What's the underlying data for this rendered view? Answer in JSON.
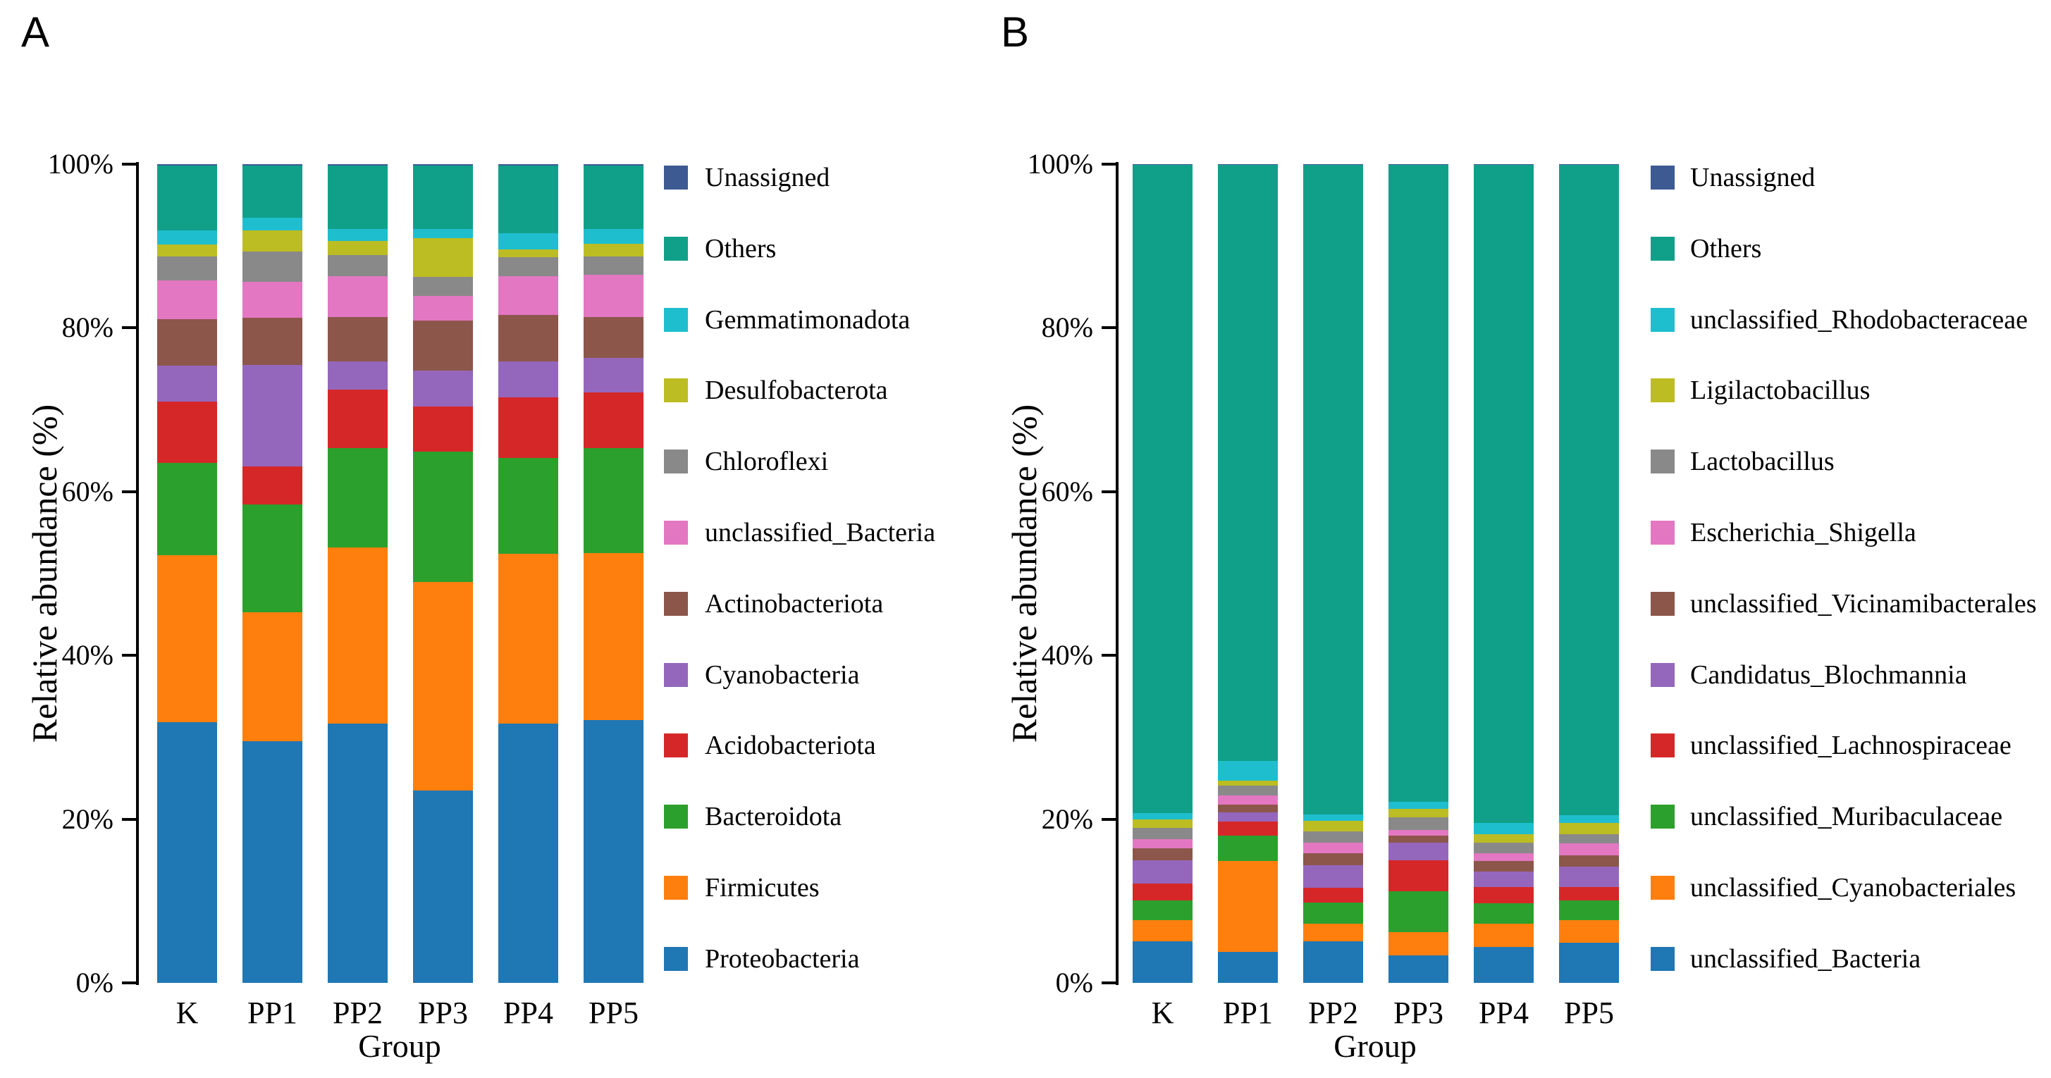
{
  "figure": {
    "background": "#ffffff"
  },
  "chart_data": [
    {
      "type": "bar",
      "stacked": true,
      "panel_letter": "A",
      "xlabel": "Group",
      "ylabel": "Relative abundance (%)",
      "ylim": [
        0,
        100
      ],
      "yticks": [
        "0%",
        "20%",
        "40%",
        "60%",
        "80%",
        "100%"
      ],
      "grid": false,
      "legend_position": "right",
      "categories": [
        "K",
        "PP1",
        "PP2",
        "PP3",
        "PP4",
        "PP5"
      ],
      "legend_top_to_bottom": [
        "Unassigned",
        "Others",
        "Gemmatimonadota",
        "Desulfobacterota",
        "Chloroflexi",
        "unclassified_Bacteria",
        "Actinobacteriota",
        "Cyanobacteria",
        "Acidobacteriota",
        "Bacteroidota",
        "Firmicutes",
        "Proteobacteria"
      ],
      "series": [
        {
          "name": "Proteobacteria",
          "color": "#1f77b4",
          "values": [
            31.8,
            29.5,
            31.7,
            23.5,
            31.7,
            32.1
          ]
        },
        {
          "name": "Firmicutes",
          "color": "#ff7f0e",
          "values": [
            20.4,
            15.8,
            21.5,
            25.5,
            20.7,
            20.4
          ]
        },
        {
          "name": "Bacteroidota",
          "color": "#2ca02c",
          "values": [
            11.3,
            13.1,
            12.1,
            15.9,
            11.7,
            12.8
          ]
        },
        {
          "name": "Acidobacteriota",
          "color": "#d62728",
          "values": [
            7.5,
            4.7,
            7.2,
            5.5,
            7.4,
            6.8
          ]
        },
        {
          "name": "Cyanobacteria",
          "color": "#9467bd",
          "values": [
            4.4,
            12.4,
            3.4,
            4.4,
            4.4,
            4.2
          ]
        },
        {
          "name": "Actinobacteriota",
          "color": "#8c564b",
          "values": [
            5.7,
            5.7,
            5.4,
            6.1,
            5.7,
            5.0
          ]
        },
        {
          "name": "unclassified_Bacteria",
          "color": "#e377c2",
          "values": [
            4.7,
            4.4,
            5.0,
            3.0,
            4.7,
            5.2
          ]
        },
        {
          "name": "Chloroflexi",
          "color": "#898989",
          "values": [
            2.9,
            3.7,
            2.6,
            2.3,
            2.3,
            2.2
          ]
        },
        {
          "name": "Desulfobacterota",
          "color": "#bcbd22",
          "values": [
            1.5,
            2.6,
            1.7,
            4.8,
            1.0,
            1.6
          ]
        },
        {
          "name": "Gemmatimonadota",
          "color": "#1ebecf",
          "values": [
            1.7,
            1.6,
            1.5,
            1.1,
            2.0,
            1.8
          ]
        },
        {
          "name": "Others",
          "color": "#10a089",
          "values": [
            7.95,
            6.35,
            7.75,
            7.75,
            8.25,
            7.75
          ]
        },
        {
          "name": "Unassigned",
          "color": "#3d5a93",
          "values": [
            0.15,
            0.15,
            0.15,
            0.15,
            0.15,
            0.15
          ]
        }
      ]
    },
    {
      "type": "bar",
      "stacked": true,
      "panel_letter": "B",
      "xlabel": "Group",
      "ylabel": "Relative abundance (%)",
      "ylim": [
        0,
        100
      ],
      "yticks": [
        "0%",
        "20%",
        "40%",
        "60%",
        "80%",
        "100%"
      ],
      "grid": false,
      "legend_position": "right",
      "categories": [
        "K",
        "PP1",
        "PP2",
        "PP3",
        "PP4",
        "PP5"
      ],
      "legend_top_to_bottom": [
        "Unassigned",
        "Others",
        "unclassified_Rhodobacteraceae",
        "Ligilactobacillus",
        "Lactobacillus",
        "Escherichia_Shigella",
        "unclassified_Vicinamibacterales",
        "Candidatus_Blochmannia",
        "unclassified_Lachnospiraceae",
        "unclassified_Muribaculaceae",
        "unclassified_Cyanobacteriales",
        "unclassified_Bacteria"
      ],
      "series": [
        {
          "name": "unclassified_Bacteria",
          "color": "#1f77b4",
          "values": [
            5.1,
            3.8,
            5.1,
            3.4,
            4.4,
            4.9
          ]
        },
        {
          "name": "unclassified_Cyanobacteriales",
          "color": "#ff7f0e",
          "values": [
            2.6,
            11.1,
            2.1,
            2.8,
            2.8,
            2.8
          ]
        },
        {
          "name": "unclassified_Muribaculaceae",
          "color": "#2ca02c",
          "values": [
            2.4,
            3.1,
            2.6,
            5.0,
            2.5,
            2.4
          ]
        },
        {
          "name": "unclassified_Lachnospiraceae",
          "color": "#d62728",
          "values": [
            2.0,
            1.7,
            1.8,
            3.8,
            2.0,
            1.6
          ]
        },
        {
          "name": "Candidatus_Blochmannia",
          "color": "#9467bd",
          "values": [
            2.9,
            1.1,
            2.8,
            2.1,
            1.9,
            2.5
          ]
        },
        {
          "name": "unclassified_Vicinamibacterales",
          "color": "#8c564b",
          "values": [
            1.4,
            1.0,
            1.4,
            0.9,
            1.3,
            1.4
          ]
        },
        {
          "name": "Escherichia_Shigella",
          "color": "#e377c2",
          "values": [
            1.2,
            1.1,
            1.3,
            0.7,
            0.9,
            1.4
          ]
        },
        {
          "name": "Lactobacillus",
          "color": "#898989",
          "values": [
            1.3,
            1.2,
            1.4,
            1.5,
            1.3,
            1.2
          ]
        },
        {
          "name": "Ligilactobacillus",
          "color": "#bcbd22",
          "values": [
            1.1,
            0.6,
            1.3,
            1.1,
            1.1,
            1.3
          ]
        },
        {
          "name": "unclassified_Rhodobacteraceae",
          "color": "#1ebecf",
          "values": [
            0.7,
            2.4,
            0.8,
            0.8,
            1.3,
            1.0
          ]
        },
        {
          "name": "Others",
          "color": "#10a089",
          "values": [
            79.2,
            72.8,
            79.3,
            77.8,
            80.4,
            79.4
          ]
        },
        {
          "name": "Unassigned",
          "color": "#3d5a93",
          "values": [
            0.1,
            0.1,
            0.1,
            0.1,
            0.1,
            0.1
          ]
        }
      ]
    }
  ]
}
